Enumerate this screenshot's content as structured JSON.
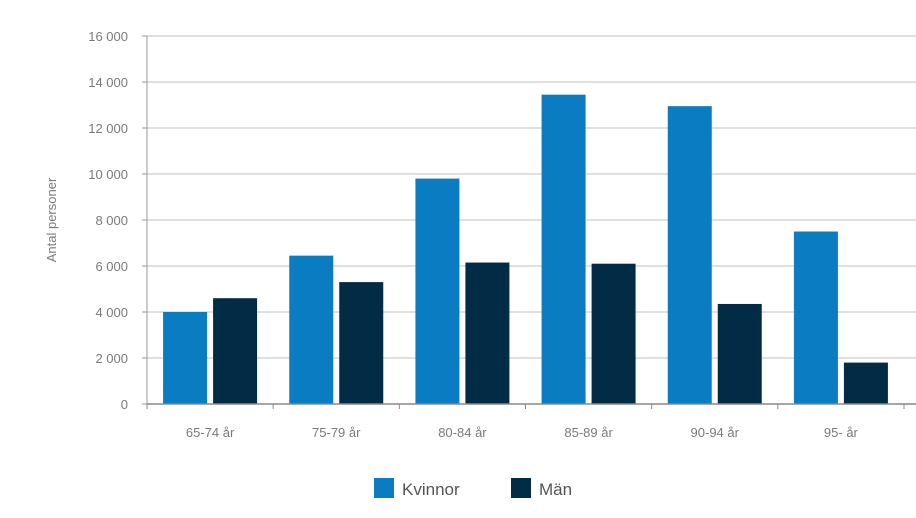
{
  "chart_data": {
    "type": "bar",
    "title": "",
    "xlabel": "",
    "ylabel": "Antal personer",
    "categories": [
      "65-74 år",
      "75-79 år",
      "80-84 år",
      "85-89 år",
      "90-94 år",
      "95- år"
    ],
    "series": [
      {
        "name": "Kvinnor",
        "color": "#0a7cc1",
        "values": [
          4000,
          6450,
          9800,
          13450,
          12950,
          7500
        ]
      },
      {
        "name": "Män",
        "color": "#022c46",
        "values": [
          4600,
          5300,
          6150,
          6100,
          4350,
          1800
        ]
      }
    ],
    "ylim": [
      0,
      16000
    ],
    "yticks": [
      0,
      2000,
      4000,
      6000,
      8000,
      10000,
      12000,
      14000,
      16000
    ],
    "ytick_labels": [
      "0",
      "2 000",
      "4 000",
      "6 000",
      "8 000",
      "10 000",
      "12 000",
      "14 000",
      "16 000"
    ],
    "grid": true,
    "legend_position": "bottom-center"
  }
}
